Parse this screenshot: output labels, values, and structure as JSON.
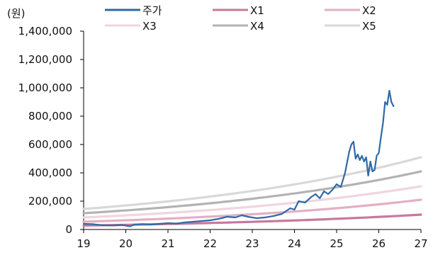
{
  "chart_data": {
    "type": "line",
    "unit_label": "(원)",
    "x_ticks": [
      "19",
      "20",
      "21",
      "22",
      "23",
      "24",
      "25",
      "26",
      "27"
    ],
    "xlim": [
      2019,
      2027
    ],
    "y_ticks": [
      "0",
      "200,000",
      "400,000",
      "600,000",
      "800,000",
      "1,000,000",
      "1,200,000",
      "1,400,000"
    ],
    "ylim": [
      0,
      1400000
    ],
    "grid": false,
    "legend_position": "top",
    "series": [
      {
        "name": "주가",
        "color": "#2f6aa6",
        "x": [
          2019.0,
          2019.2,
          2019.45,
          2019.7,
          2019.9,
          2020.1,
          2020.2,
          2020.4,
          2020.6,
          2020.8,
          2021.0,
          2021.2,
          2021.4,
          2021.6,
          2021.8,
          2022.0,
          2022.2,
          2022.4,
          2022.6,
          2022.75,
          2022.9,
          2023.1,
          2023.3,
          2023.5,
          2023.7,
          2023.9,
          2024.0,
          2024.1,
          2024.25,
          2024.4,
          2024.5,
          2024.6,
          2024.7,
          2024.8,
          2024.9,
          2025.0,
          2025.1,
          2025.2,
          2025.3,
          2025.35,
          2025.4,
          2025.45,
          2025.5,
          2025.55,
          2025.6,
          2025.65,
          2025.7,
          2025.75,
          2025.8,
          2025.85,
          2025.9,
          2025.95,
          2026.0,
          2026.05,
          2026.1,
          2026.15,
          2026.2,
          2026.25,
          2026.3,
          2026.35
        ],
        "values": [
          40000,
          38000,
          30000,
          28000,
          32000,
          22000,
          35000,
          38000,
          35000,
          40000,
          45000,
          42000,
          50000,
          55000,
          60000,
          65000,
          75000,
          90000,
          85000,
          100000,
          90000,
          80000,
          85000,
          95000,
          110000,
          150000,
          140000,
          200000,
          190000,
          230000,
          250000,
          220000,
          270000,
          250000,
          280000,
          320000,
          300000,
          400000,
          550000,
          600000,
          620000,
          500000,
          530000,
          490000,
          520000,
          480000,
          510000,
          380000,
          480000,
          410000,
          420000,
          520000,
          540000,
          650000,
          750000,
          900000,
          880000,
          980000,
          900000,
          870000
        ]
      },
      {
        "name": "X1",
        "color": "#c8789a",
        "start": 28000,
        "end": 105000
      },
      {
        "name": "X2",
        "color": "#e3afc4",
        "start": 55000,
        "end": 210000
      },
      {
        "name": "X3",
        "color": "#f0d5df",
        "start": 85000,
        "end": 305000
      },
      {
        "name": "X4",
        "color": "#b3b3b3",
        "start": 115000,
        "end": 410000
      },
      {
        "name": "X5",
        "color": "#d8d8d8",
        "start": 145000,
        "end": 510000
      }
    ]
  }
}
